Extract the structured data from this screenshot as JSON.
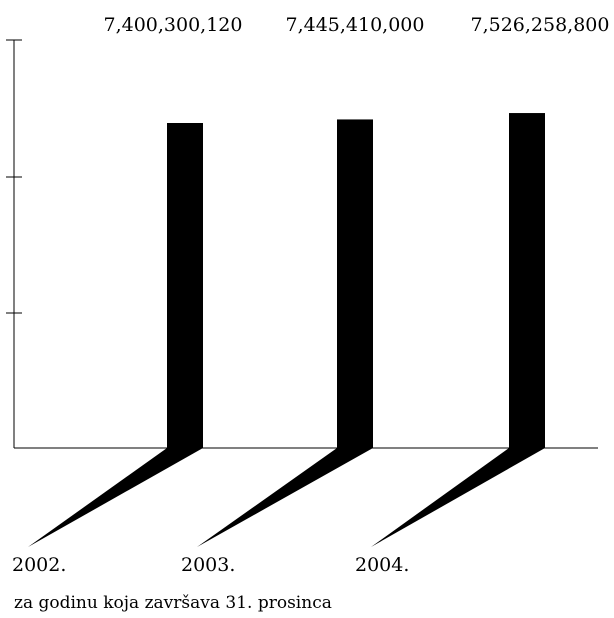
{
  "chart_data": {
    "type": "bar",
    "categories": [
      "2002.",
      "2003.",
      "2004."
    ],
    "values": [
      7400300120,
      7445410000,
      7526258800
    ],
    "value_labels": [
      "7,400,300,120",
      "7,445,410,000",
      "7,526,258,800"
    ],
    "caption": "za godinu koja završava 31. prosinca",
    "title": "",
    "xlabel": "",
    "ylabel": "",
    "grid": false,
    "legend": "none",
    "bar_color": "#000000"
  }
}
